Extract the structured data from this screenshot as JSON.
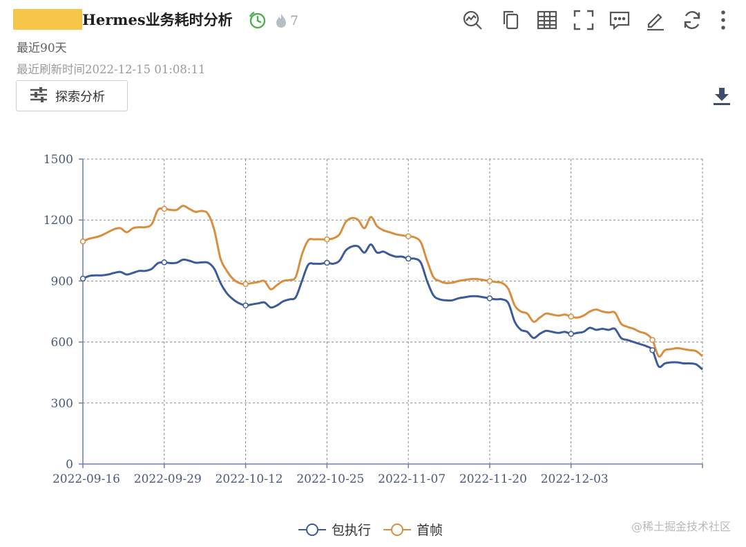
{
  "header": {
    "title": "Hermes业务耗时分析",
    "hot_count": "7",
    "period": "最近90天",
    "refresh_text": "最近刷新时间2022-12-15 01:08:11",
    "explore_label": "探索分析"
  },
  "toolbar": {
    "icons": [
      "analysis-icon",
      "copy-icon",
      "table-icon",
      "fullscreen-icon",
      "comment-icon",
      "edit-icon",
      "refresh-icon",
      "more-icon",
      "download-icon"
    ]
  },
  "colors": {
    "series_blue": "#3c5b9b",
    "series_orange": "#d98e3f",
    "timer_green": "#4caf50",
    "redaction": "#f5c648"
  },
  "watermark": "@稀土掘金技术社区",
  "chart_data": {
    "type": "line",
    "x_ticks": [
      "2022-09-16",
      "2022-09-29",
      "2022-10-12",
      "2022-10-25",
      "2022-11-07",
      "2022-11-20",
      "2022-12-03"
    ],
    "y_ticks": [
      "0",
      "300",
      "600",
      "900",
      "1200",
      "1500"
    ],
    "ylim": [
      0,
      1500
    ],
    "x_start": "2022-09-16",
    "x_end": "2022-12-14",
    "grid": true,
    "legend_position": "bottom-center",
    "series": [
      {
        "name": "包执行",
        "color": "#3c5b9b",
        "marker_every": 13,
        "values": [
          912,
          925,
          928,
          928,
          932,
          940,
          945,
          932,
          940,
          950,
          950,
          960,
          988,
          992,
          988,
          990,
          1005,
          1000,
          990,
          992,
          990,
          960,
          890,
          840,
          810,
          790,
          780,
          785,
          790,
          795,
          770,
          780,
          800,
          810,
          820,
          900,
          980,
          985,
          985,
          990,
          985,
          1000,
          1050,
          1070,
          1070,
          1040,
          1080,
          1040,
          1045,
          1030,
          1020,
          1020,
          1010,
          1010,
          990,
          900,
          830,
          810,
          805,
          805,
          815,
          820,
          825,
          825,
          820,
          815,
          810,
          810,
          790,
          700,
          660,
          650,
          620,
          640,
          655,
          650,
          645,
          650,
          640,
          645,
          650,
          670,
          660,
          665,
          660,
          665,
          620,
          610,
          600,
          590,
          580,
          560,
          480,
          495,
          500,
          500,
          495,
          495,
          490,
          465
        ]
      },
      {
        "name": "首帧",
        "color": "#d98e3f",
        "marker_every": 13,
        "values": [
          1095,
          1108,
          1115,
          1125,
          1140,
          1155,
          1160,
          1140,
          1160,
          1165,
          1165,
          1180,
          1250,
          1255,
          1250,
          1250,
          1270,
          1255,
          1240,
          1245,
          1230,
          1150,
          1010,
          950,
          910,
          890,
          885,
          890,
          895,
          900,
          860,
          880,
          900,
          905,
          920,
          1030,
          1100,
          1105,
          1105,
          1105,
          1110,
          1130,
          1190,
          1210,
          1200,
          1160,
          1215,
          1170,
          1150,
          1140,
          1130,
          1125,
          1120,
          1115,
          1090,
          1000,
          920,
          900,
          890,
          892,
          900,
          905,
          910,
          910,
          905,
          900,
          895,
          890,
          860,
          780,
          750,
          740,
          700,
          720,
          740,
          735,
          730,
          735,
          725,
          720,
          730,
          750,
          760,
          750,
          745,
          745,
          690,
          675,
          665,
          650,
          640,
          610,
          530,
          560,
          565,
          570,
          565,
          560,
          555,
          530
        ]
      }
    ]
  }
}
